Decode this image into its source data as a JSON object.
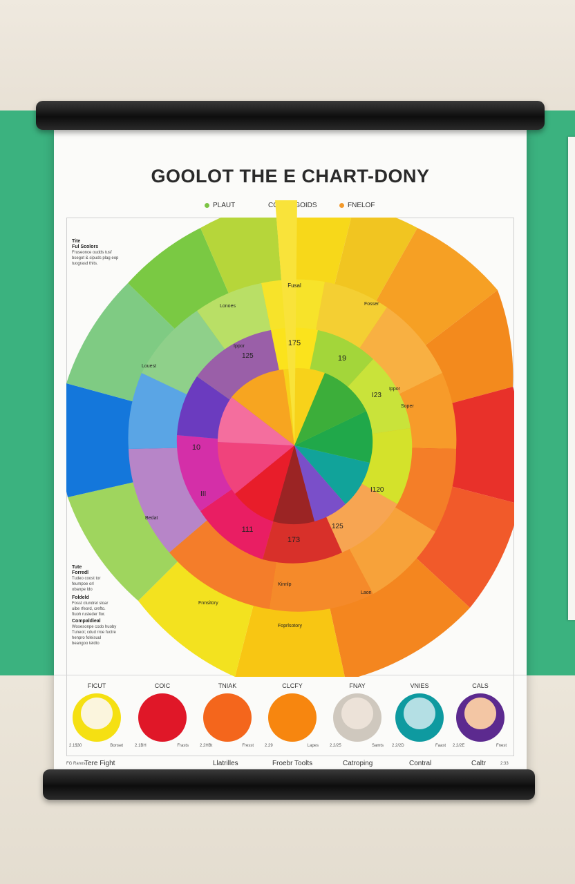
{
  "poster": {
    "title": "GOOLOT THE E CHART-DONY",
    "legend": [
      {
        "label": "PLAUT",
        "color": "#7cc444"
      },
      {
        "label": "COLOR GOIDS",
        "color": ""
      },
      {
        "label": "FNELOF",
        "color": "#f39a2c"
      }
    ]
  },
  "side_notes": [
    {
      "heading": "Tite",
      "sub": "Ful Scolors",
      "body": "Fruseonce oudds tusf\nbsegot & sipuds plag eop\ntuograsd thits."
    },
    {
      "heading": "Tute",
      "sub": "Forredl",
      "body": "Tudeo coost tor\nfeumpoe orl\nobanpe ldo"
    },
    {
      "heading": "Foldeld",
      "sub": "",
      "body": "Fosst ctundrel sloar\nuibe rfeord, crefto.\nftuoh rusteder flor."
    },
    {
      "heading": "Compaldieal",
      "sub": "",
      "body": "Wosesonpe codo huoby\nTuneot; cdud rroe fuctre\nhenpro foleisuul\nbeangoo teldto"
    }
  ],
  "wheel": {
    "center_labels": [
      "Fusal",
      "175",
      "19",
      "10",
      "111",
      "173"
    ],
    "ring_labels": [
      "Lonoes",
      "Fosser",
      "Ippor",
      "125",
      "Louest",
      "I23",
      "Ippor",
      "III",
      "Soper",
      "125",
      "Bedat",
      "I120",
      "Kinnlp",
      "Fnnsitory",
      "Laon",
      "Foprlsotory"
    ]
  },
  "swatches": [
    {
      "label": "FICUT",
      "outer": "#f5e012",
      "inner": "#fbf5dd",
      "code": "2.1$30",
      "code2": "Bonset"
    },
    {
      "label": "COIC",
      "outer": "#e01728",
      "inner": "",
      "code": "2.1BH",
      "code2": "Frasts"
    },
    {
      "label": "TNIAK",
      "outer": "#f4661c",
      "inner": "",
      "code": "2.2HBt",
      "code2": "Fresst"
    },
    {
      "label": "CLCFY",
      "outer": "#f7860f",
      "inner": "",
      "code": "2.29",
      "code2": "Lapes"
    },
    {
      "label": "FNAY",
      "outer": "#cfc8be",
      "inner": "#ece2d8",
      "code": "2.2/25",
      "code2": "Samts"
    },
    {
      "label": "VNIES",
      "outer": "#0e9aa0",
      "inner": "#b4dfe4",
      "code": "2.2/2D",
      "code2": "Faast"
    },
    {
      "label": "CALS",
      "outer": "#5c2a8f",
      "inner": "#f3c6a4",
      "code": "2.2/2E",
      "code2": "Fnest"
    }
  ],
  "footer": {
    "left_small": "FG Ranos",
    "left": "Tere Fight",
    "items": [
      "Llatrilles",
      "Froebr Toolts",
      "Catroping",
      "Contral",
      "Caltr"
    ],
    "right_small": "2:33"
  }
}
